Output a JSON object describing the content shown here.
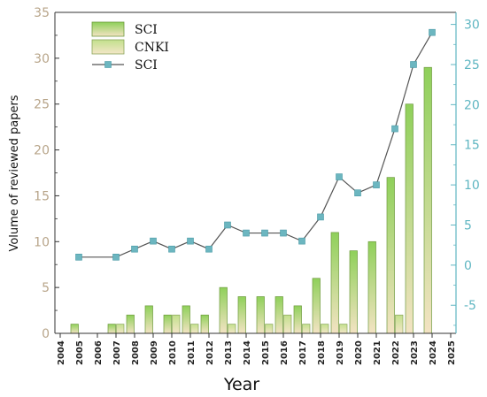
{
  "chart_data": {
    "type": "bar",
    "xlabel": "Year",
    "ylabel": "Volume of reviewed papers",
    "x_ticks": [
      "2004",
      "2005",
      "2006",
      "2007",
      "2008",
      "2009",
      "2010",
      "2011",
      "2012",
      "2013",
      "2014",
      "2015",
      "2016",
      "2017",
      "2018",
      "2019",
      "2020",
      "2021",
      "2022",
      "2023",
      "2024",
      "2025"
    ],
    "y_left_ticks": [
      "0",
      "5",
      "10",
      "15",
      "20",
      "25",
      "30",
      "35"
    ],
    "y_right_ticks": [
      "-5",
      "0",
      "5",
      "10",
      "15",
      "20",
      "25",
      "30"
    ],
    "ylim_left": [
      0,
      35
    ],
    "ylim_right": [
      -8.5,
      31.5
    ],
    "categories": [
      2005,
      2007,
      2008,
      2009,
      2010,
      2011,
      2012,
      2013,
      2014,
      2015,
      2016,
      2017,
      2018,
      2019,
      2020,
      2021,
      2022,
      2023,
      2024
    ],
    "series": [
      {
        "name": "SCI",
        "kind": "bar",
        "axis": "left",
        "values": [
          1,
          1,
          2,
          3,
          2,
          3,
          2,
          5,
          4,
          4,
          4,
          3,
          6,
          11,
          9,
          10,
          17,
          25,
          29
        ]
      },
      {
        "name": "CNKI",
        "kind": "bar",
        "axis": "left",
        "values": [
          0,
          1,
          0,
          0,
          2,
          1,
          0,
          1,
          0,
          1,
          2,
          1,
          1,
          1,
          0,
          0,
          2,
          0,
          0
        ]
      },
      {
        "name": "SCI",
        "kind": "line",
        "axis": "right",
        "values": [
          1,
          1,
          2,
          3,
          2,
          3,
          2,
          5,
          4,
          4,
          4,
          3,
          6,
          11,
          9,
          10,
          17,
          25,
          29
        ]
      }
    ],
    "colors": {
      "bar_main": "#8fd05a",
      "bar_secondary": "#b4dc7d",
      "line": "#555555",
      "marker": "#6cb6c0",
      "left_axis": "#b8a58a",
      "right_axis": "#5fb6c2"
    },
    "legend_position": "top-left",
    "grid": false
  }
}
